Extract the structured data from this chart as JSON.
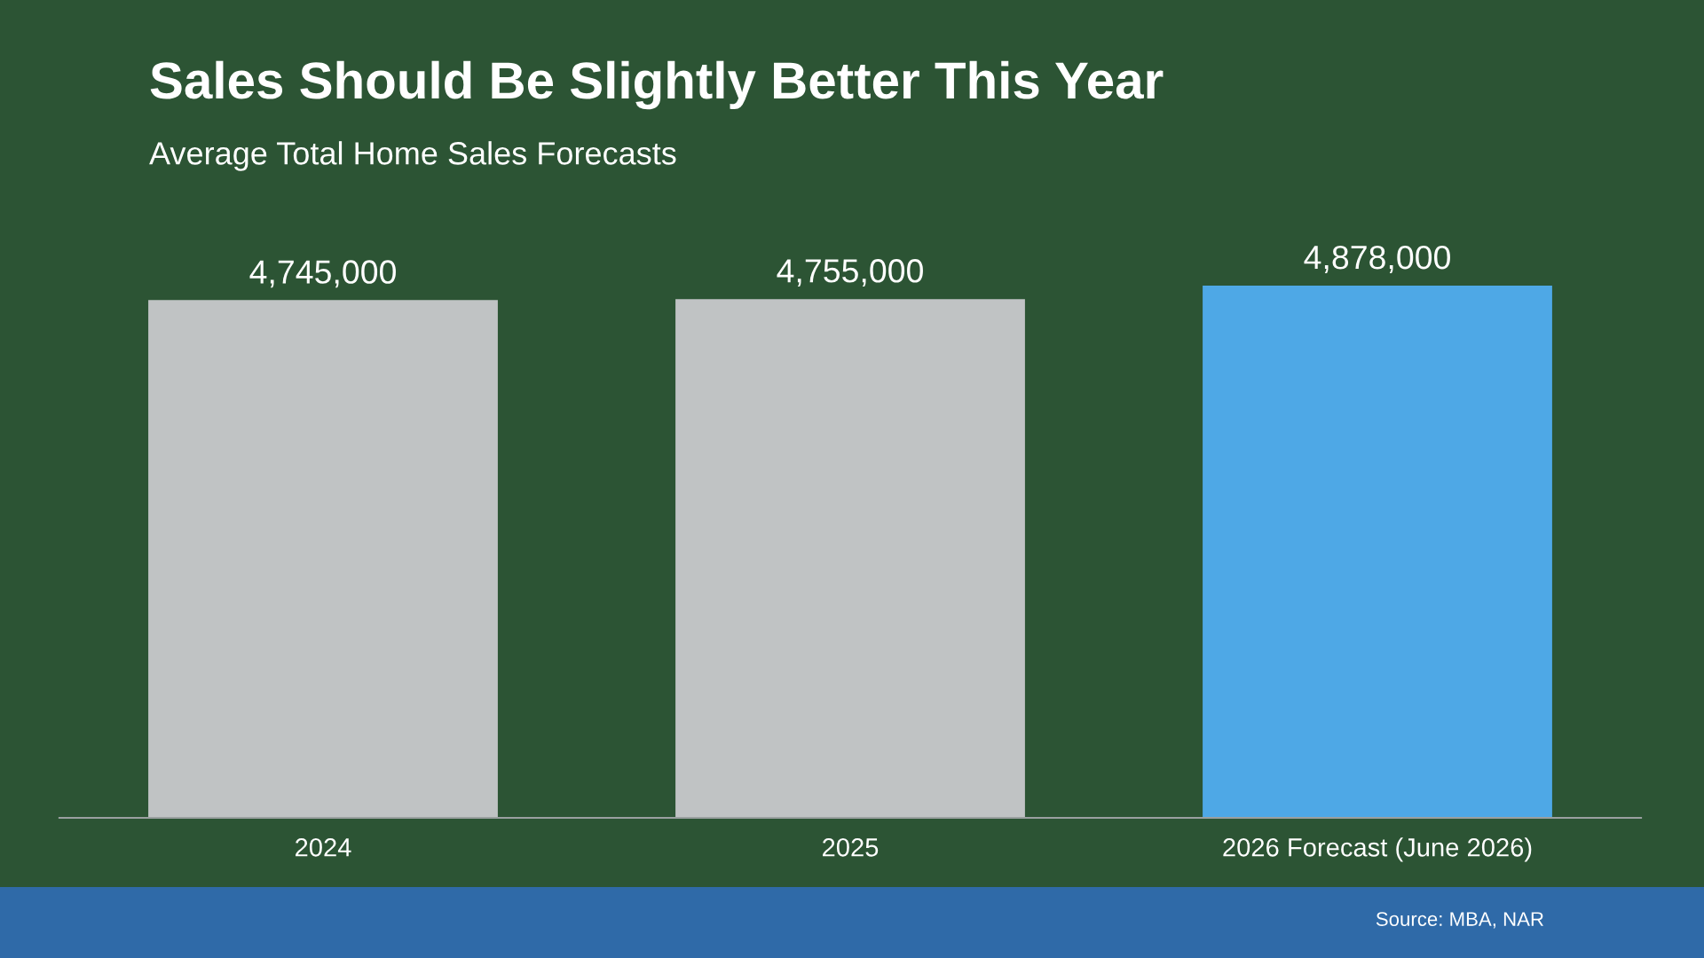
{
  "chart_data": {
    "type": "bar",
    "title": "Sales Should Be Slightly Better This Year",
    "subtitle": "Average Total Home Sales Forecasts",
    "categories": [
      "2024",
      "2025",
      "2026 Forecast (June 2026)"
    ],
    "values": [
      4745000,
      4755000,
      4878000
    ],
    "colors": [
      "#c0c3c4",
      "#c0c3c4",
      "#4ea8e6"
    ],
    "value_labels": [
      "4,745,000",
      "4,755,000",
      "4,878,000"
    ],
    "grid": false,
    "legend": false,
    "tick_labels": "x",
    "annotations": [
      "Source: MBA, NAR"
    ]
  }
}
